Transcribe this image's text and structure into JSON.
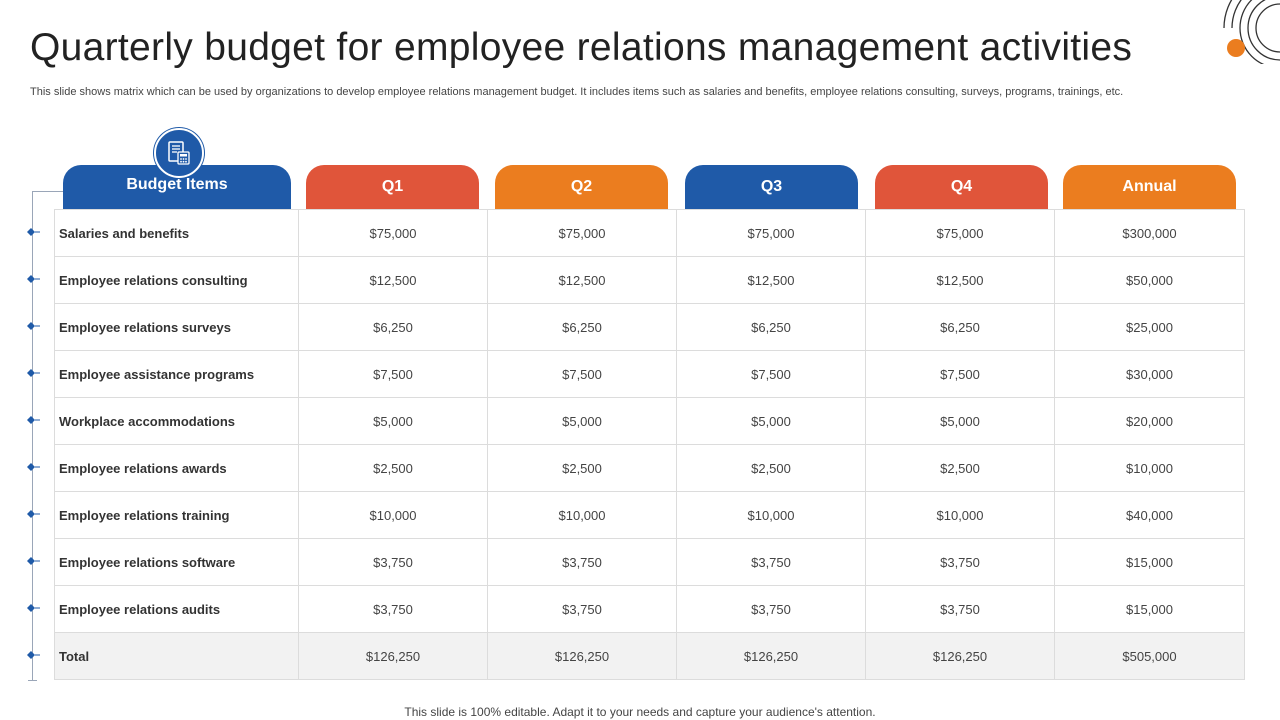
{
  "title": "Quarterly budget for employee relations management activities",
  "subtitle": "This slide shows matrix which can be used by organizations to develop employee relations management budget. It includes items such as salaries and benefits, employee relations consulting, surveys, programs, trainings, etc.",
  "footer": "This slide is 100% editable. Adapt it to your needs and capture your audience's attention.",
  "colors": {
    "blue": "#1f5aa8",
    "red": "#e0553a",
    "orange": "#eb7d1f"
  },
  "table": {
    "columns": [
      {
        "label": "Budget Items",
        "color": "#1f5aa8",
        "icon": "calculator-document-icon"
      },
      {
        "label": "Q1",
        "color": "#e0553a"
      },
      {
        "label": "Q2",
        "color": "#eb7d1f"
      },
      {
        "label": "Q3",
        "color": "#1f5aa8"
      },
      {
        "label": "Q4",
        "color": "#e0553a"
      },
      {
        "label": "Annual",
        "color": "#eb7d1f"
      }
    ],
    "rows": [
      {
        "item": "Salaries and benefits",
        "q1": "$75,000",
        "q2": "$75,000",
        "q3": "$75,000",
        "q4": "$75,000",
        "annual": "$300,000"
      },
      {
        "item": "Employee relations consulting",
        "q1": "$12,500",
        "q2": "$12,500",
        "q3": "$12,500",
        "q4": "$12,500",
        "annual": "$50,000"
      },
      {
        "item": "Employee relations surveys",
        "q1": "$6,250",
        "q2": "$6,250",
        "q3": "$6,250",
        "q4": "$6,250",
        "annual": "$25,000"
      },
      {
        "item": "Employee assistance programs",
        "q1": "$7,500",
        "q2": "$7,500",
        "q3": "$7,500",
        "q4": "$7,500",
        "annual": "$30,000"
      },
      {
        "item": "Workplace accommodations",
        "q1": "$5,000",
        "q2": "$5,000",
        "q3": "$5,000",
        "q4": "$5,000",
        "annual": "$20,000"
      },
      {
        "item": "Employee relations awards",
        "q1": "$2,500",
        "q2": "$2,500",
        "q3": "$2,500",
        "q4": "$2,500",
        "annual": "$10,000"
      },
      {
        "item": "Employee relations training",
        "q1": "$10,000",
        "q2": "$10,000",
        "q3": "$10,000",
        "q4": "$10,000",
        "annual": "$40,000"
      },
      {
        "item": "Employee relations software",
        "q1": "$3,750",
        "q2": "$3,750",
        "q3": "$3,750",
        "q4": "$3,750",
        "annual": "$15,000"
      },
      {
        "item": "Employee relations audits",
        "q1": "$3,750",
        "q2": "$3,750",
        "q3": "$3,750",
        "q4": "$3,750",
        "annual": "$15,000"
      },
      {
        "item": "Total",
        "q1": "$126,250",
        "q2": "$126,250",
        "q3": "$126,250",
        "q4": "$126,250",
        "annual": "$505,000"
      }
    ]
  }
}
